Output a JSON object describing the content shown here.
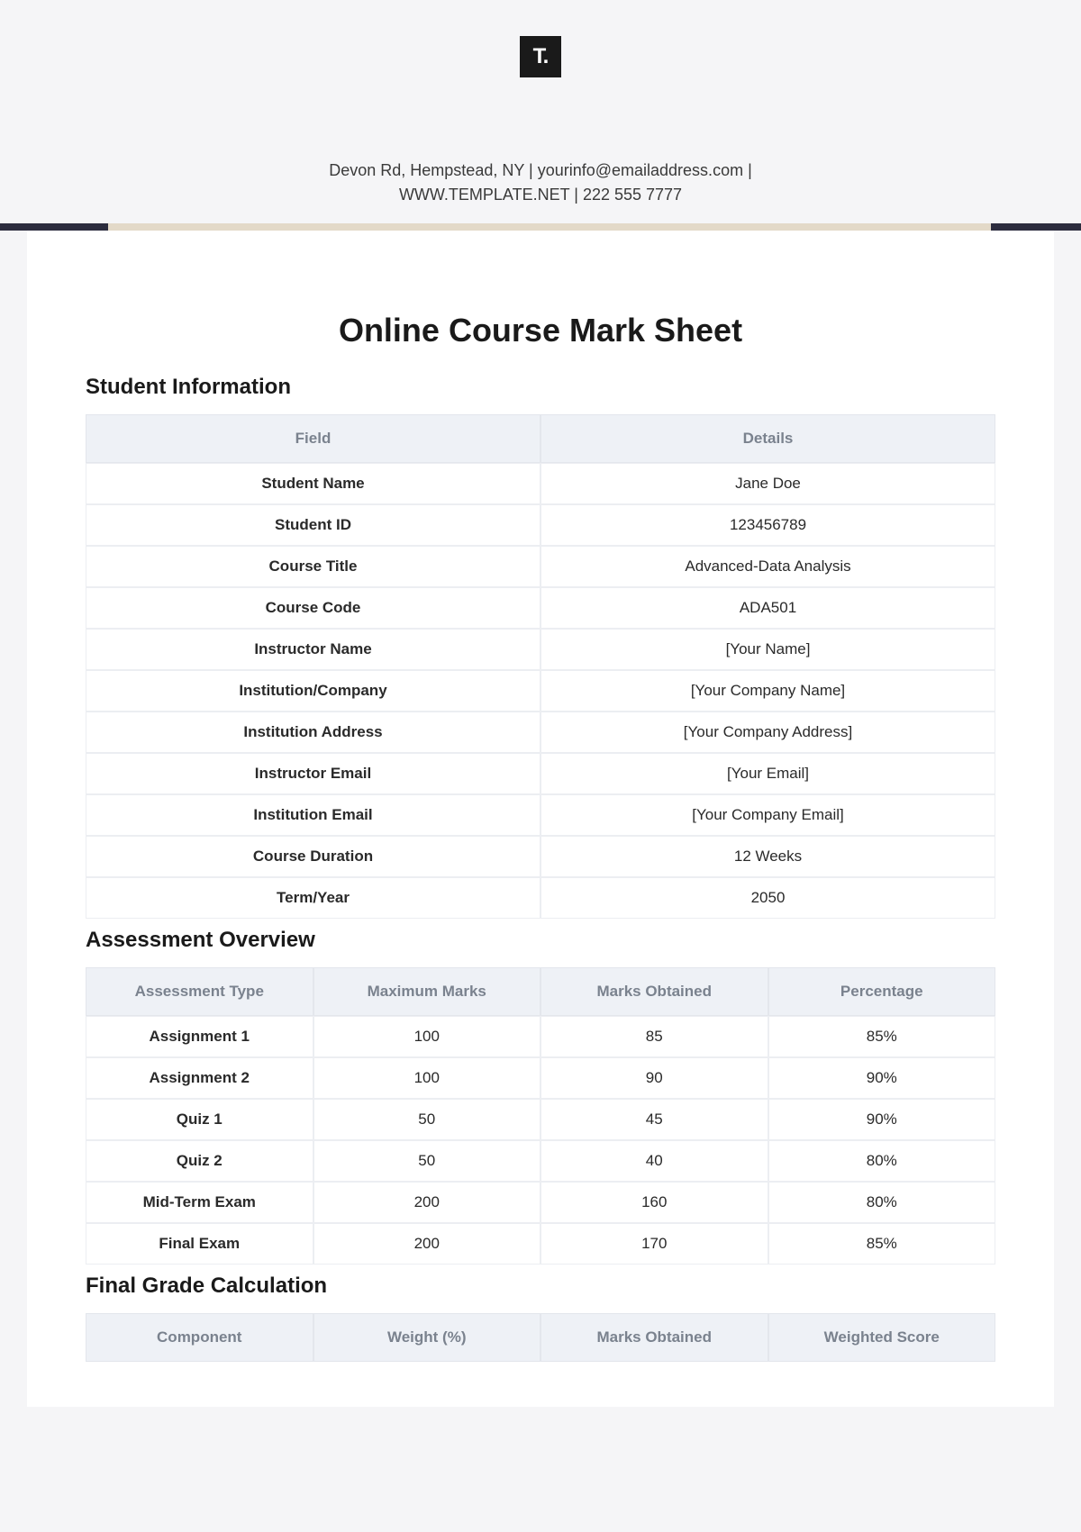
{
  "header": {
    "logo_text": "T.",
    "contact_line1": "Devon Rd, Hempstead, NY | yourinfo@emailaddress.com |",
    "contact_line2": "WWW.TEMPLATE.NET | 222 555 7777"
  },
  "title": "Online Course Mark Sheet",
  "student_info": {
    "heading": "Student Information",
    "columns": [
      "Field",
      "Details"
    ],
    "rows": [
      [
        "Student Name",
        "Jane Doe"
      ],
      [
        "Student ID",
        "123456789"
      ],
      [
        "Course Title",
        "Advanced-Data Analysis"
      ],
      [
        "Course Code",
        "ADA501"
      ],
      [
        "Instructor Name",
        "[Your Name]"
      ],
      [
        "Institution/Company",
        "[Your Company Name]"
      ],
      [
        "Institution Address",
        "[Your Company Address]"
      ],
      [
        "Instructor Email",
        "[Your Email]"
      ],
      [
        "Institution Email",
        "[Your Company Email]"
      ],
      [
        "Course Duration",
        "12 Weeks"
      ],
      [
        "Term/Year",
        "2050"
      ]
    ]
  },
  "assessment": {
    "heading": "Assessment Overview",
    "columns": [
      "Assessment Type",
      "Maximum Marks",
      "Marks Obtained",
      "Percentage"
    ],
    "rows": [
      [
        "Assignment 1",
        "100",
        "85",
        "85%"
      ],
      [
        "Assignment 2",
        "100",
        "90",
        "90%"
      ],
      [
        "Quiz 1",
        "50",
        "45",
        "90%"
      ],
      [
        "Quiz 2",
        "50",
        "40",
        "80%"
      ],
      [
        "Mid-Term Exam",
        "200",
        "160",
        "80%"
      ],
      [
        "Final Exam",
        "200",
        "170",
        "85%"
      ]
    ]
  },
  "final_grade": {
    "heading": "Final Grade Calculation",
    "columns": [
      "Component",
      "Weight (%)",
      "Marks Obtained",
      "Weighted Score"
    ]
  },
  "colors": {
    "page_bg": "#f5f5f7",
    "content_bg": "#ffffff",
    "logo_bg": "#1a1a1a",
    "logo_fg": "#ffffff",
    "divider_dark": "#2c2c3e",
    "divider_light": "#e3d9c8",
    "th_bg": "#eef1f6",
    "th_fg": "#7a828e",
    "border": "#e3e6ec",
    "text": "#1a1a1a"
  }
}
